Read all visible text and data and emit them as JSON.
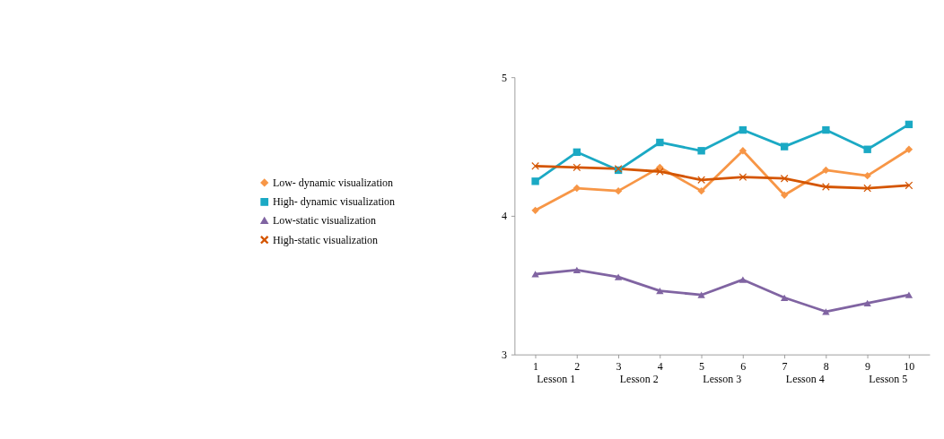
{
  "chart_data": {
    "type": "line",
    "categories": [
      "1",
      "2",
      "3",
      "4",
      "5",
      "6",
      "7",
      "8",
      "9",
      "10"
    ],
    "annotations": [
      "Lesson 1",
      "Lesson 2",
      "Lesson 3",
      "Lesson 4",
      "Lesson 5"
    ],
    "ylim": [
      3,
      5
    ],
    "yticks": [
      3,
      4,
      5
    ],
    "grid": false,
    "legend": "left",
    "line_style": "solid",
    "series": [
      {
        "name": "Low- dynamic visualization",
        "color": "#f79646",
        "marker": "diamond",
        "values": [
          4.04,
          4.2,
          4.18,
          4.35,
          4.18,
          4.47,
          4.15,
          4.33,
          4.29,
          4.48
        ]
      },
      {
        "name": "High- dynamic visualization",
        "color": "#1ba9c4",
        "marker": "square",
        "values": [
          4.25,
          4.46,
          4.33,
          4.53,
          4.47,
          4.62,
          4.5,
          4.62,
          4.48,
          4.66
        ]
      },
      {
        "name": "Low-static visualization",
        "color": "#8064a2",
        "marker": "triangle",
        "values": [
          3.58,
          3.61,
          3.56,
          3.46,
          3.43,
          3.54,
          3.41,
          3.31,
          3.37,
          3.43
        ]
      },
      {
        "name": "High-static visualization",
        "color": "#d45500",
        "marker": "cross",
        "values": [
          4.36,
          4.35,
          4.34,
          4.32,
          4.26,
          4.28,
          4.27,
          4.21,
          4.2,
          4.22
        ]
      }
    ]
  }
}
